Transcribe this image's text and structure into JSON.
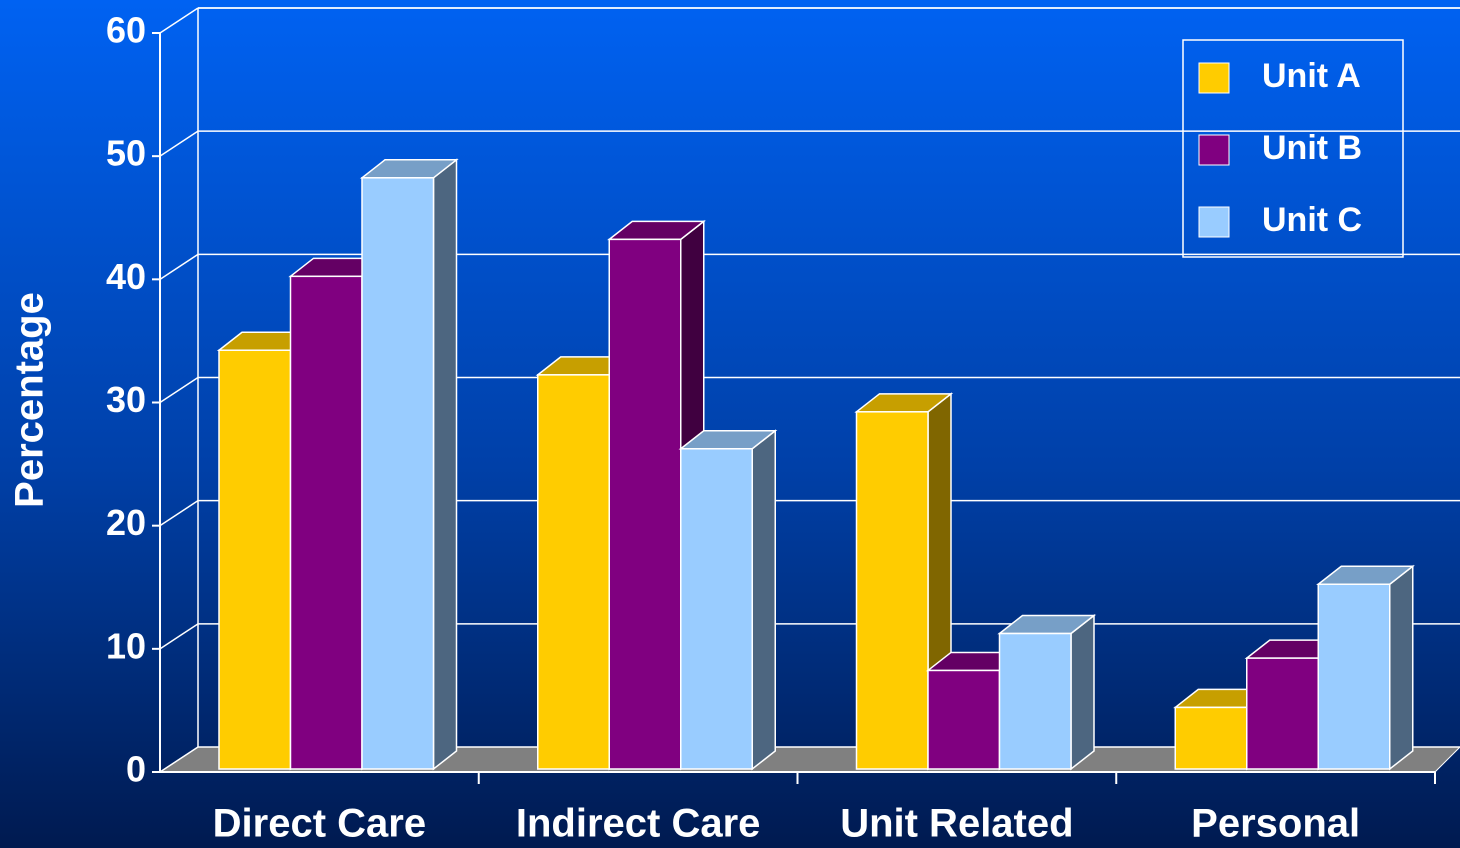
{
  "chart_data": {
    "type": "bar3d",
    "y_label": "Percentage",
    "categories": [
      "Direct Care",
      "Indirect Care",
      "Unit Related",
      "Personal"
    ],
    "series": [
      {
        "name": "Unit A",
        "color": "#ffcc00",
        "values": [
          34,
          32,
          29,
          5
        ]
      },
      {
        "name": "Unit B",
        "color": "#800080",
        "values": [
          40,
          43,
          8,
          9
        ]
      },
      {
        "name": "Unit C",
        "color": "#99ccff",
        "values": [
          48,
          26,
          11,
          15
        ]
      }
    ],
    "ylim": [
      0,
      60
    ],
    "yticks": [
      0,
      10,
      20,
      30,
      40,
      50,
      60
    ],
    "grid": true,
    "legend": "top-right"
  }
}
